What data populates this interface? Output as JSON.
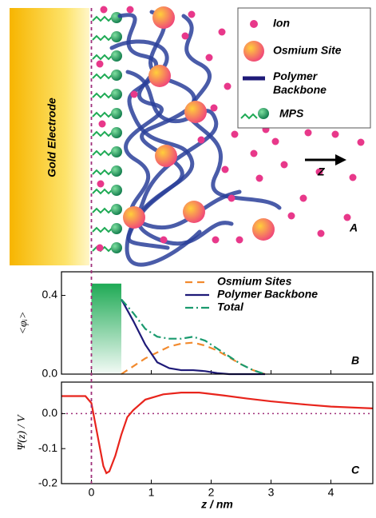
{
  "diagram": {
    "electrode_label": "Gold Electrode",
    "legend": [
      "Ion",
      "Osmium Site",
      "Polymer\nBackbone",
      "MPS"
    ],
    "axis_label": "Z",
    "panel_label": "A"
  },
  "chart_data": [
    {
      "type": "line",
      "panel_label": "B",
      "ylabel": "<φᵢ>",
      "x": [
        0.5,
        0.7,
        0.9,
        1.1,
        1.3,
        1.5,
        1.7,
        1.9,
        2.1,
        2.3,
        2.5,
        2.7,
        2.9
      ],
      "series": [
        {
          "name": "Osmium Sites",
          "color": "#f28a2e",
          "dash": "dashed",
          "values": [
            0,
            0.04,
            0.08,
            0.11,
            0.14,
            0.155,
            0.16,
            0.145,
            0.12,
            0.085,
            0.05,
            0.02,
            0
          ]
        },
        {
          "name": "Polymer Backbone",
          "color": "#1e1a78",
          "dash": "solid",
          "values": [
            0.38,
            0.27,
            0.15,
            0.06,
            0.03,
            0.02,
            0.02,
            0.015,
            0.005,
            0,
            0,
            0,
            0
          ]
        },
        {
          "name": "Total",
          "color": "#1a9a6e",
          "dash": "dashdot",
          "values": [
            0.38,
            0.31,
            0.23,
            0.19,
            0.18,
            0.18,
            0.19,
            0.17,
            0.13,
            0.09,
            0.05,
            0.02,
            0
          ]
        }
      ],
      "xlim": [
        -0.5,
        4.7
      ],
      "ylim": [
        0,
        0.52
      ],
      "yticks": [
        {
          "value": 0,
          "label": "0.0"
        },
        {
          "value": 0.4,
          "label": "0.4"
        }
      ]
    },
    {
      "type": "line",
      "panel_label": "C",
      "ylabel": "Ψ(z) / V",
      "xlabel": "z / nm",
      "x": [
        -0.5,
        -0.1,
        0,
        0.1,
        0.2,
        0.25,
        0.3,
        0.4,
        0.5,
        0.6,
        0.7,
        0.9,
        1.2,
        1.5,
        1.8,
        2.2,
        2.6,
        3.0,
        3.5,
        4.0,
        4.7
      ],
      "series": [
        {
          "color": "#e8241c",
          "dash": "solid",
          "values": [
            0.05,
            0.05,
            0.03,
            -0.06,
            -0.15,
            -0.17,
            -0.165,
            -0.12,
            -0.06,
            -0.01,
            0.01,
            0.04,
            0.055,
            0.06,
            0.06,
            0.052,
            0.043,
            0.035,
            0.027,
            0.02,
            0.015
          ]
        }
      ],
      "xlim": [
        -0.5,
        4.7
      ],
      "ylim": [
        -0.2,
        0.09
      ],
      "xticks": [
        0,
        1,
        2,
        3,
        4
      ],
      "yticks": [
        {
          "value": 0,
          "label": "0.0"
        },
        {
          "value": -0.1,
          "label": "-0.1"
        },
        {
          "value": -0.2,
          "label": "-0.2"
        }
      ]
    }
  ]
}
